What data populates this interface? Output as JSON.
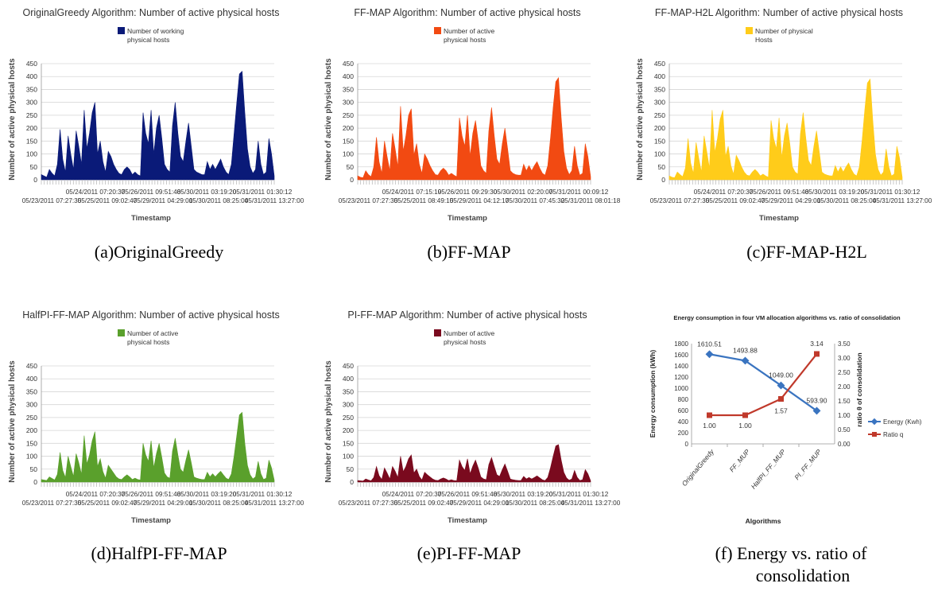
{
  "chart_data": [
    {
      "type": "area",
      "title": "OriginalGreedy Algorithm: Number of active physical hosts",
      "legend": [
        "Number of working",
        "physical hosts"
      ],
      "legend_placement": "top",
      "ylabel": "Number of active physical hosts",
      "xlabel": "Timestamp",
      "ylim": [
        0,
        450
      ],
      "yticks": [
        "0",
        "50",
        "100",
        "150",
        "200",
        "250",
        "300",
        "350",
        "400",
        "450"
      ],
      "xticks_top": [
        "05/24/2011 07:20:37",
        "05/26/2011 09:51:48",
        "05/30/2011 03:19:20",
        "05/31/2011 01:30:12"
      ],
      "xticks_bottom": [
        "05/23/2011 07:27:35",
        "05/25/2011 09:02:47",
        "05/29/2011 04:29:01",
        "05/30/2011 08:25:04",
        "05/31/2011 13:27:00"
      ],
      "color": "#0a1a78",
      "grid": true,
      "values": [
        20,
        15,
        10,
        40,
        25,
        15,
        60,
        195,
        80,
        30,
        170,
        100,
        40,
        190,
        130,
        60,
        270,
        120,
        180,
        260,
        300,
        100,
        150,
        70,
        30,
        110,
        90,
        60,
        40,
        25,
        20,
        40,
        50,
        40,
        20,
        30,
        20,
        15,
        260,
        180,
        140,
        270,
        100,
        200,
        250,
        160,
        60,
        40,
        30,
        210,
        300,
        180,
        90,
        70,
        150,
        220,
        130,
        40,
        30,
        25,
        20,
        20,
        70,
        40,
        60,
        40,
        60,
        80,
        50,
        30,
        20,
        60,
        180,
        300,
        410,
        420,
        260,
        120,
        50,
        25,
        40,
        150,
        60,
        20,
        30,
        160,
        100,
        15
      ]
    },
    {
      "type": "area",
      "title": "FF-MAP Algorithm: Number of active physical hosts",
      "legend": [
        "Number of active",
        "physical hosts"
      ],
      "legend_placement": "top",
      "ylabel": "Number of active physical hosts",
      "xlabel": "Timestamp",
      "ylim": [
        0,
        450
      ],
      "yticks": [
        "0",
        "50",
        "100",
        "150",
        "200",
        "250",
        "300",
        "350",
        "400",
        "450"
      ],
      "xticks_top": [
        "05/24/2011 07:15:19",
        "05/26/2011 09:29:30",
        "05/30/2011 02:20:07",
        "05/31/2011 00:09:12"
      ],
      "xticks_bottom": [
        "05/23/2011 07:27:35",
        "05/25/2011 08:49:15",
        "05/29/2011 04:12:17",
        "05/30/2011 07:45:32",
        "05/31/2011 08:01:18"
      ],
      "color": "#f24a12",
      "grid": true,
      "values": [
        15,
        10,
        8,
        35,
        20,
        12,
        50,
        165,
        70,
        25,
        150,
        90,
        35,
        180,
        120,
        50,
        285,
        110,
        170,
        250,
        275,
        95,
        140,
        60,
        25,
        100,
        80,
        55,
        35,
        20,
        18,
        35,
        45,
        35,
        18,
        25,
        18,
        12,
        240,
        170,
        130,
        250,
        90,
        180,
        230,
        150,
        55,
        35,
        25,
        190,
        280,
        170,
        80,
        60,
        140,
        200,
        120,
        35,
        25,
        20,
        18,
        18,
        60,
        35,
        55,
        35,
        55,
        70,
        45,
        25,
        18,
        55,
        160,
        280,
        380,
        395,
        240,
        110,
        45,
        20,
        35,
        130,
        55,
        18,
        25,
        140,
        90,
        12
      ]
    },
    {
      "type": "area",
      "title": "FF-MAP-H2L Algorithm: Number of active physical hosts",
      "legend": [
        "Number of physical",
        "Hosts"
      ],
      "legend_placement": "top",
      "ylabel": "Number of active physical hosts",
      "xlabel": "Timestamp",
      "ylim": [
        0,
        450
      ],
      "yticks": [
        "0",
        "50",
        "100",
        "150",
        "200",
        "250",
        "300",
        "350",
        "400",
        "450"
      ],
      "xticks_top": [
        "05/24/2011 07:20:37",
        "05/26/2011 09:51:48",
        "05/30/2011 03:19:20",
        "05/31/2011 01:30:12"
      ],
      "xticks_bottom": [
        "05/23/2011 07:27:35",
        "05/25/2011 09:02:47",
        "05/29/2011 04:29:01",
        "05/30/2011 08:25:04",
        "05/31/2011 13:27:00"
      ],
      "color": "#ffcc1a",
      "grid": true,
      "values": [
        15,
        10,
        8,
        30,
        20,
        12,
        45,
        160,
        65,
        25,
        145,
        85,
        30,
        170,
        110,
        45,
        270,
        105,
        160,
        235,
        270,
        90,
        130,
        55,
        22,
        95,
        75,
        50,
        30,
        18,
        15,
        30,
        40,
        30,
        15,
        22,
        15,
        10,
        230,
        160,
        120,
        240,
        85,
        170,
        220,
        140,
        50,
        30,
        22,
        180,
        260,
        160,
        75,
        55,
        130,
        190,
        110,
        30,
        22,
        18,
        15,
        15,
        55,
        30,
        50,
        30,
        50,
        65,
        40,
        22,
        15,
        50,
        150,
        270,
        375,
        390,
        230,
        100,
        40,
        18,
        30,
        120,
        50,
        15,
        22,
        130,
        85,
        10
      ]
    },
    {
      "type": "area",
      "title": "HalfPI-FF-MAP Algorithm: Number of active physical hosts",
      "legend": [
        "Number of active",
        "physical hosts"
      ],
      "legend_placement": "top",
      "ylabel": "Number of active physical hosts",
      "xlabel": "Timestamp",
      "ylim": [
        0,
        450
      ],
      "yticks": [
        "0",
        "50",
        "100",
        "150",
        "200",
        "250",
        "300",
        "350",
        "400",
        "450"
      ],
      "xticks_top": [
        "05/24/2011 07:20:37",
        "05/26/2011 09:51:48",
        "05/30/2011 03:19:20",
        "05/31/2011 01:30:12"
      ],
      "xticks_bottom": [
        "05/23/2011 07:27:35",
        "05/25/2011 09:02:47",
        "05/29/2011 04:29:01",
        "05/30/2011 08:25:04",
        "05/31/2011 13:27:00"
      ],
      "color": "#5aa02c",
      "grid": true,
      "values": [
        10,
        8,
        6,
        20,
        14,
        8,
        30,
        115,
        45,
        18,
        100,
        60,
        22,
        110,
        75,
        30,
        180,
        70,
        105,
        160,
        195,
        60,
        90,
        40,
        15,
        65,
        50,
        35,
        20,
        12,
        10,
        20,
        28,
        20,
        10,
        15,
        10,
        8,
        150,
        105,
        80,
        160,
        55,
        110,
        150,
        95,
        35,
        20,
        15,
        120,
        170,
        105,
        50,
        38,
        85,
        125,
        75,
        20,
        15,
        12,
        10,
        10,
        38,
        20,
        32,
        20,
        32,
        42,
        28,
        15,
        10,
        32,
        100,
        180,
        260,
        270,
        150,
        65,
        28,
        12,
        20,
        80,
        32,
        10,
        15,
        85,
        55,
        8
      ]
    },
    {
      "type": "area",
      "title": "PI-FF-MAP Algorithm: Number of active physical hosts",
      "legend": [
        "Number of active",
        "physical hosts"
      ],
      "legend_placement": "top",
      "ylabel": "Number of active physical hosts",
      "xlabel": "Timestamp",
      "ylim": [
        0,
        450
      ],
      "yticks": [
        "0",
        "50",
        "100",
        "150",
        "200",
        "250",
        "300",
        "350",
        "400",
        "450"
      ],
      "xticks_top": [
        "05/24/2011 07:20:37",
        "05/26/2011 09:51:48",
        "05/30/2011 03:19:20",
        "05/31/2011 01:30:12"
      ],
      "xticks_bottom": [
        "05/23/2011 07:27:35",
        "05/25/2011 09:02:47",
        "05/29/2011 04:29:01",
        "05/30/2011 08:25:04",
        "05/31/2011 13:27:00"
      ],
      "color": "#7a0a1e",
      "grid": true,
      "values": [
        6,
        5,
        4,
        12,
        8,
        5,
        18,
        60,
        25,
        10,
        55,
        35,
        12,
        60,
        42,
        18,
        100,
        40,
        60,
        90,
        105,
        35,
        50,
        22,
        8,
        38,
        28,
        20,
        12,
        7,
        6,
        12,
        16,
        12,
        6,
        9,
        6,
        5,
        85,
        60,
        45,
        90,
        32,
        62,
        85,
        55,
        20,
        12,
        9,
        68,
        95,
        60,
        28,
        22,
        48,
        70,
        42,
        12,
        9,
        7,
        6,
        6,
        22,
        12,
        18,
        12,
        18,
        24,
        16,
        9,
        6,
        18,
        55,
        100,
        140,
        145,
        85,
        38,
        16,
        7,
        12,
        45,
        18,
        6,
        9,
        48,
        32,
        5
      ]
    },
    {
      "type": "line",
      "title": "Energy consumption in four VM allocation algorithms vs. ratio of consolidation",
      "xlabel": "Algorithms",
      "ylabel": "Energy consumption (kWh)",
      "y2label": "ratio θ of consolidation",
      "categories": [
        "OriginalGreedy",
        "FF_MUP",
        "HalfPI_FF_MUP",
        "PI_FF_MUP"
      ],
      "ylim": [
        0,
        1800
      ],
      "y2lim": [
        0,
        3.5
      ],
      "yticks": [
        "0",
        "200",
        "400",
        "600",
        "800",
        "1000",
        "1200",
        "1400",
        "1600",
        "1800"
      ],
      "y2ticks": [
        "0.00",
        "0.50",
        "1.00",
        "1.50",
        "2.00",
        "2.50",
        "3.00",
        "3.50"
      ],
      "legend_placement": "right",
      "series": [
        {
          "name": "Energy (Kwh)",
          "axis": "left",
          "color": "#3a74c0",
          "marker": "diamond",
          "values": [
            1610.51,
            1493.88,
            1049.0,
            593.9
          ],
          "labels": [
            "1610.51",
            "1493.88",
            "1049.00",
            "593.90"
          ]
        },
        {
          "name": "Ratio q",
          "axis": "right",
          "color": "#c0392b",
          "marker": "square",
          "values": [
            1.0,
            1.0,
            1.57,
            3.14
          ],
          "labels": [
            "1.00",
            "1.00",
            "1.57",
            "3.14"
          ]
        }
      ]
    }
  ],
  "captions": [
    "(a)OriginalGreedy",
    "(b)FF-MAP",
    "(c)FF-MAP-H2L",
    "(d)HalfPI-FF-MAP",
    "(e)PI-FF-MAP",
    "(f)  Energy vs. ratio of",
    "consolidation"
  ]
}
